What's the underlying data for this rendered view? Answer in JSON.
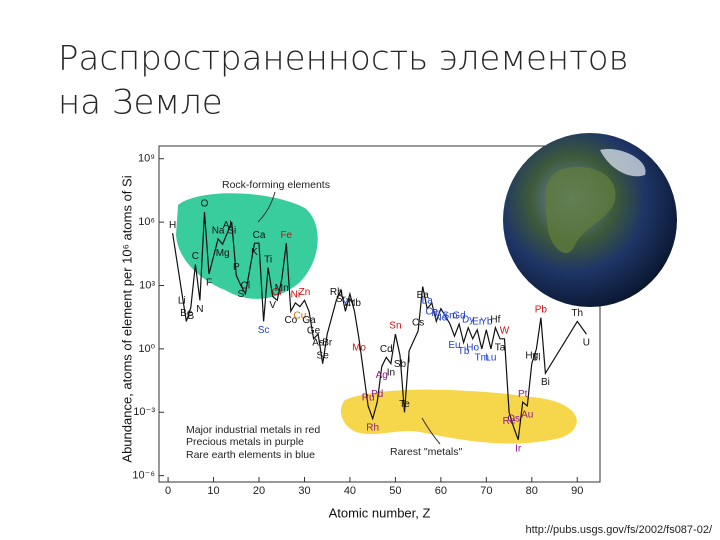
{
  "title_lines": [
    "Распространенность элементов",
    "на Земле"
  ],
  "source": "http://pubs.usgs.gov/fs/2002/fs087-02/",
  "chart_data": {
    "type": "line",
    "y_label": "Abundance, atoms of element per 10⁶ atoms of Si",
    "x_label": "Atomic number, Z",
    "log_y": true,
    "xlim": [
      -2,
      95
    ],
    "xticks": [
      0,
      10,
      20,
      30,
      40,
      50,
      60,
      70,
      80,
      90
    ],
    "ylim": [
      5e-07,
      4000000000.0
    ],
    "yticks": [
      {
        "value": 1000000000.0,
        "label": "10⁹"
      },
      {
        "value": 1000000.0,
        "label": "10⁶"
      },
      {
        "value": 1000,
        "label": "10³"
      },
      {
        "value": 1,
        "label": "10⁰"
      },
      {
        "value": 0.001,
        "label": "10⁻³"
      },
      {
        "value": 1e-06,
        "label": "10⁻⁶"
      }
    ],
    "line_color": "#111111",
    "x": [
      1,
      3,
      4,
      5,
      6,
      7,
      8,
      9,
      11,
      12,
      13,
      14,
      15,
      16,
      17,
      19,
      20,
      21,
      22,
      23,
      24,
      25,
      26,
      27,
      28,
      29,
      30,
      31,
      32,
      33,
      34,
      35,
      37,
      38,
      39,
      40,
      41,
      42,
      44,
      45,
      46,
      47,
      48,
      49,
      50,
      51,
      52,
      53,
      55,
      56,
      57,
      58,
      59,
      60,
      62,
      63,
      64,
      65,
      66,
      67,
      68,
      69,
      70,
      71,
      72,
      73,
      74,
      75,
      76,
      77,
      78,
      79,
      80,
      81,
      82,
      83,
      90,
      92
    ],
    "point_labels": [
      "H",
      "Li",
      "Be",
      "B",
      "C",
      "N",
      "O",
      "F",
      "Na",
      "Mg",
      "Al",
      "Si",
      "P",
      "S",
      "Cl",
      "K",
      "Ca",
      "Sc",
      "Ti",
      "V",
      "Cr",
      "Mn",
      "Fe",
      "Co",
      "Ni",
      "Cu",
      "Zn",
      "Ga",
      "Ge",
      "As",
      "Se",
      "Br",
      "Rb",
      "Sr",
      "Y",
      "Zr",
      "Nb",
      "Mo",
      "Ru",
      "Rh",
      "Pd",
      "Ag",
      "Cd",
      "In",
      "Sn",
      "Sb",
      "Te",
      "I",
      "Cs",
      "Ba",
      "La",
      "Ce",
      "Pr",
      "Nd",
      "Sm",
      "Eu",
      "Gd",
      "Tb",
      "Dy",
      "Ho",
      "Er",
      "Tm",
      "Yb",
      "Lu",
      "Hf",
      "Ta",
      "W",
      "Re",
      "Os",
      "Ir",
      "Pt",
      "Au",
      "Hg",
      "Tl",
      "Pb",
      "Bi",
      "Th",
      "U"
    ],
    "values": [
      300000,
      500,
      20,
      90,
      10000,
      200,
      3000000,
      3500,
      160000,
      90000,
      300000,
      1000000,
      3000,
      1000,
      400,
      100000,
      100000,
      20,
      7000,
      300,
      200,
      2000,
      100000,
      60,
      150,
      100,
      200,
      60,
      3,
      5,
      0.2,
      5,
      200,
      600,
      60,
      400,
      60,
      3,
      0.002,
      0.0005,
      0.003,
      0.15,
      0.4,
      0.2,
      5,
      0.5,
      0.001,
      0.8,
      7,
      900,
      80,
      150,
      20,
      80,
      15,
      4,
      15,
      2,
      10,
      3,
      8,
      1,
      8,
      1,
      10,
      3,
      3,
      0.001,
      0.0002,
      5e-05,
      0.003,
      0.002,
      0.2,
      1,
      30,
      0.07,
      20,
      5
    ],
    "label_colors": [
      "#111",
      "#111",
      "#111",
      "#111",
      "#111",
      "#111",
      "#111",
      "#111",
      "#111",
      "#111",
      "#111",
      "#111",
      "#111",
      "#111",
      "#111",
      "#111",
      "#111",
      "#1f3fd0",
      "#111",
      "#111",
      "#d01010",
      "#111",
      "#d01010",
      "#111",
      "#d01010",
      "#d07000",
      "#d01010",
      "#111",
      "#111",
      "#111",
      "#111",
      "#111",
      "#111",
      "#111",
      "#1f3fd0",
      "#111",
      "#111",
      "#d01010",
      "#8a1a8a",
      "#8a1a8a",
      "#8a1a8a",
      "#8a1a8a",
      "#111",
      "#111",
      "#d01010",
      "#111",
      "#111",
      "#111",
      "#111",
      "#111",
      "#1f3fd0",
      "#1f3fd0",
      "#1f3fd0",
      "#1f3fd0",
      "#1f3fd0",
      "#1f3fd0",
      "#1f3fd0",
      "#1f3fd0",
      "#1f3fd0",
      "#1f3fd0",
      "#1f3fd0",
      "#1f3fd0",
      "#1f3fd0",
      "#1f3fd0",
      "#111",
      "#111",
      "#d01010",
      "#8a1a8a",
      "#8a1a8a",
      "#8a1a8a",
      "#8a1a8a",
      "#8a1a8a",
      "#111",
      "#111",
      "#d01010",
      "#111",
      "#111",
      "#111"
    ],
    "annotations": [
      "Rock-forming elements",
      "Rarest \"metals\"",
      "Major industrial metals in red",
      "Precious metals in purple",
      "Rare earth elements in blue"
    ]
  }
}
